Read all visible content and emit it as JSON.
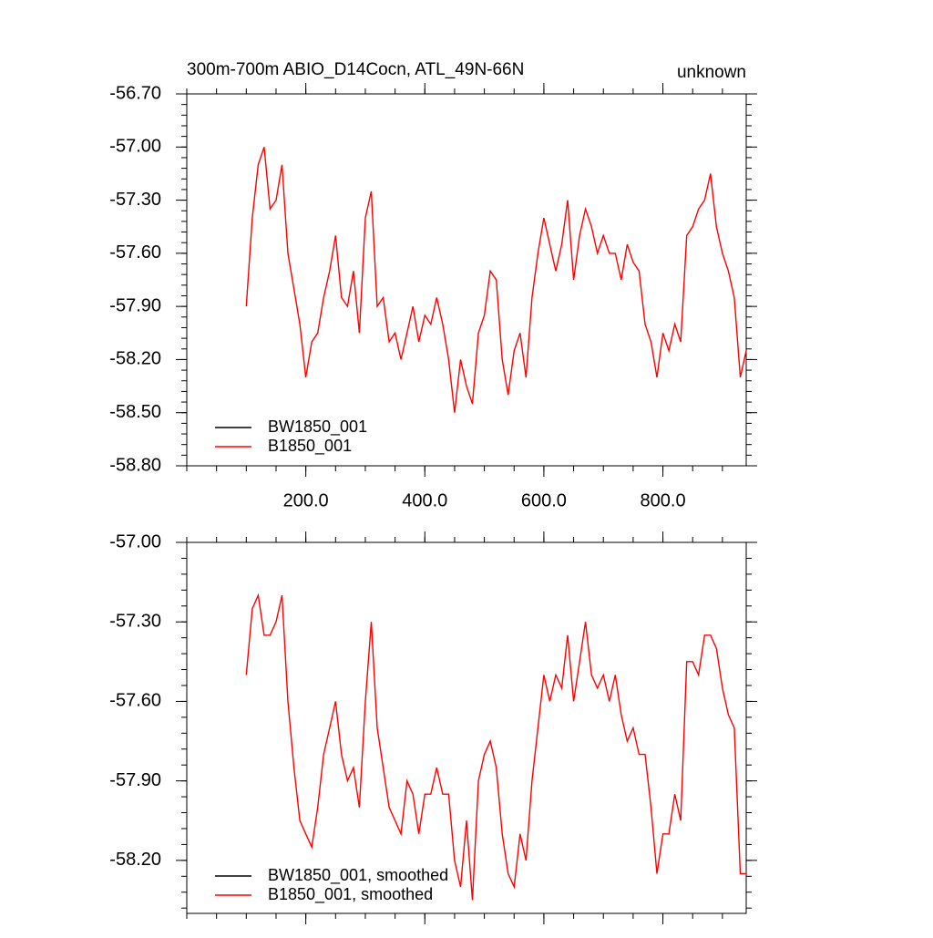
{
  "chart_data": [
    {
      "type": "line",
      "title": "300m-700m ABIO_D14Cocn, ATL_49N-66N",
      "subtitle": "unknown",
      "xlim": [
        0,
        940
      ],
      "ylim": [
        -58.8,
        -56.7
      ],
      "xticks": [
        {
          "value": 200,
          "label": "200.0"
        },
        {
          "value": 400,
          "label": "400.0"
        },
        {
          "value": 600,
          "label": "600.0"
        },
        {
          "value": 800,
          "label": "800.0"
        }
      ],
      "yticks": [
        {
          "value": -58.8,
          "label": "-58.80"
        },
        {
          "value": -58.5,
          "label": "-58.50"
        },
        {
          "value": -58.2,
          "label": "-58.20"
        },
        {
          "value": -57.9,
          "label": "-57.90"
        },
        {
          "value": -57.6,
          "label": "-57.60"
        },
        {
          "value": -57.3,
          "label": "-57.30"
        },
        {
          "value": -57.0,
          "label": "-57.00"
        },
        {
          "value": -56.7,
          "label": "-56.70"
        }
      ],
      "x": [
        100,
        110,
        120,
        130,
        140,
        150,
        160,
        170,
        180,
        190,
        200,
        210,
        220,
        230,
        240,
        250,
        260,
        270,
        280,
        290,
        300,
        310,
        320,
        330,
        340,
        350,
        360,
        370,
        380,
        390,
        400,
        410,
        420,
        430,
        440,
        450,
        460,
        470,
        480,
        490,
        500,
        510,
        520,
        530,
        540,
        550,
        560,
        570,
        580,
        590,
        600,
        610,
        620,
        630,
        640,
        650,
        660,
        670,
        680,
        690,
        700,
        710,
        720,
        730,
        740,
        750,
        760,
        770,
        780,
        790,
        800,
        810,
        820,
        830,
        840,
        850,
        860,
        870,
        880,
        890,
        900,
        910,
        920,
        930,
        940
      ],
      "series": [
        {
          "name": "BW1850_001",
          "color": "#000000",
          "values": [
            null,
            null,
            null,
            null,
            null,
            null,
            null,
            null,
            null,
            null,
            null,
            null,
            null,
            null,
            null,
            null,
            null,
            null,
            null,
            null,
            null,
            null,
            null,
            null,
            null,
            null,
            null,
            null,
            null,
            null,
            null,
            null,
            null,
            null,
            null,
            null,
            null,
            null,
            null,
            null,
            null,
            null,
            null,
            null,
            null,
            null,
            null,
            null,
            null,
            null,
            null,
            null,
            null,
            null,
            null,
            null,
            null,
            null,
            null,
            null,
            null,
            null,
            null,
            null,
            null,
            null,
            null,
            null,
            null,
            null,
            null,
            null,
            null,
            null,
            null,
            null,
            null,
            null,
            null,
            null,
            null,
            null,
            null,
            null,
            null
          ]
        },
        {
          "name": "B1850_001",
          "color": "#ff0000",
          "values": [
            -57.9,
            -57.4,
            -57.1,
            -57.0,
            -57.35,
            -57.3,
            -57.1,
            -57.6,
            -57.8,
            -58.0,
            -58.3,
            -58.1,
            -58.05,
            -57.85,
            -57.7,
            -57.5,
            -57.85,
            -57.9,
            -57.7,
            -58.05,
            -57.4,
            -57.25,
            -57.9,
            -57.85,
            -58.1,
            -58.05,
            -58.2,
            -58.05,
            -57.9,
            -58.1,
            -57.95,
            -58.0,
            -57.85,
            -58.0,
            -58.2,
            -58.5,
            -58.2,
            -58.35,
            -58.45,
            -58.05,
            -57.95,
            -57.7,
            -57.75,
            -58.2,
            -58.4,
            -58.15,
            -58.05,
            -58.3,
            -57.85,
            -57.6,
            -57.4,
            -57.55,
            -57.7,
            -57.55,
            -57.3,
            -57.75,
            -57.5,
            -57.35,
            -57.45,
            -57.6,
            -57.5,
            -57.6,
            -57.6,
            -57.75,
            -57.55,
            -57.65,
            -57.7,
            -58.0,
            -58.1,
            -58.3,
            -58.05,
            -58.15,
            -58.0,
            -58.1,
            -57.5,
            -57.45,
            -57.35,
            -57.3,
            -57.15,
            -57.45,
            -57.6,
            -57.7,
            -57.85,
            -58.3,
            -58.15
          ]
        }
      ]
    },
    {
      "type": "line",
      "xlim": [
        0,
        940
      ],
      "ylim": [
        -58.4,
        -57.0
      ],
      "yticks": [
        {
          "value": -58.2,
          "label": "-58.20"
        },
        {
          "value": -57.9,
          "label": "-57.90"
        },
        {
          "value": -57.6,
          "label": "-57.60"
        },
        {
          "value": -57.3,
          "label": "-57.30"
        },
        {
          "value": -57.0,
          "label": "-57.00"
        }
      ],
      "x": [
        100,
        110,
        120,
        130,
        140,
        150,
        160,
        170,
        180,
        190,
        200,
        210,
        220,
        230,
        240,
        250,
        260,
        270,
        280,
        290,
        300,
        310,
        320,
        330,
        340,
        350,
        360,
        370,
        380,
        390,
        400,
        410,
        420,
        430,
        440,
        450,
        460,
        470,
        480,
        490,
        500,
        510,
        520,
        530,
        540,
        550,
        560,
        570,
        580,
        590,
        600,
        610,
        620,
        630,
        640,
        650,
        660,
        670,
        680,
        690,
        700,
        710,
        720,
        730,
        740,
        750,
        760,
        770,
        780,
        790,
        800,
        810,
        820,
        830,
        840,
        850,
        860,
        870,
        880,
        890,
        900,
        910,
        920,
        930,
        940
      ],
      "series": [
        {
          "name": "BW1850_001, smoothed",
          "color": "#000000",
          "values": [
            null,
            null,
            null,
            null,
            null,
            null,
            null,
            null,
            null,
            null,
            null,
            null,
            null,
            null,
            null,
            null,
            null,
            null,
            null,
            null,
            null,
            null,
            null,
            null,
            null,
            null,
            null,
            null,
            null,
            null,
            null,
            null,
            null,
            null,
            null,
            null,
            null,
            null,
            null,
            null,
            null,
            null,
            null,
            null,
            null,
            null,
            null,
            null,
            null,
            null,
            null,
            null,
            null,
            null,
            null,
            null,
            null,
            null,
            null,
            null,
            null,
            null,
            null,
            null,
            null,
            null,
            null,
            null,
            null,
            null,
            null,
            null,
            null,
            null,
            null,
            null,
            null,
            null,
            null,
            null,
            null,
            null,
            null,
            null,
            null
          ]
        },
        {
          "name": "B1850_001, smoothed",
          "color": "#ff0000",
          "values": [
            -57.5,
            -57.25,
            -57.2,
            -57.35,
            -57.35,
            -57.3,
            -57.2,
            -57.6,
            -57.85,
            -58.05,
            -58.1,
            -58.15,
            -58.0,
            -57.8,
            -57.7,
            -57.6,
            -57.8,
            -57.9,
            -57.85,
            -58.0,
            -57.6,
            -57.3,
            -57.7,
            -57.85,
            -58.0,
            -58.05,
            -58.1,
            -57.9,
            -57.95,
            -58.1,
            -57.95,
            -57.95,
            -57.85,
            -57.95,
            -57.95,
            -58.2,
            -58.3,
            -58.05,
            -58.35,
            -57.9,
            -57.8,
            -57.75,
            -57.85,
            -58.1,
            -58.25,
            -58.3,
            -58.1,
            -58.2,
            -57.9,
            -57.7,
            -57.5,
            -57.6,
            -57.5,
            -57.55,
            -57.35,
            -57.6,
            -57.45,
            -57.3,
            -57.5,
            -57.55,
            -57.5,
            -57.6,
            -57.5,
            -57.65,
            -57.75,
            -57.7,
            -57.8,
            -57.8,
            -58.0,
            -58.25,
            -58.1,
            -58.1,
            -57.95,
            -58.05,
            -57.45,
            -57.45,
            -57.5,
            -57.35,
            -57.35,
            -57.4,
            -57.55,
            -57.65,
            -57.7,
            -58.25,
            -58.25
          ]
        }
      ]
    }
  ]
}
